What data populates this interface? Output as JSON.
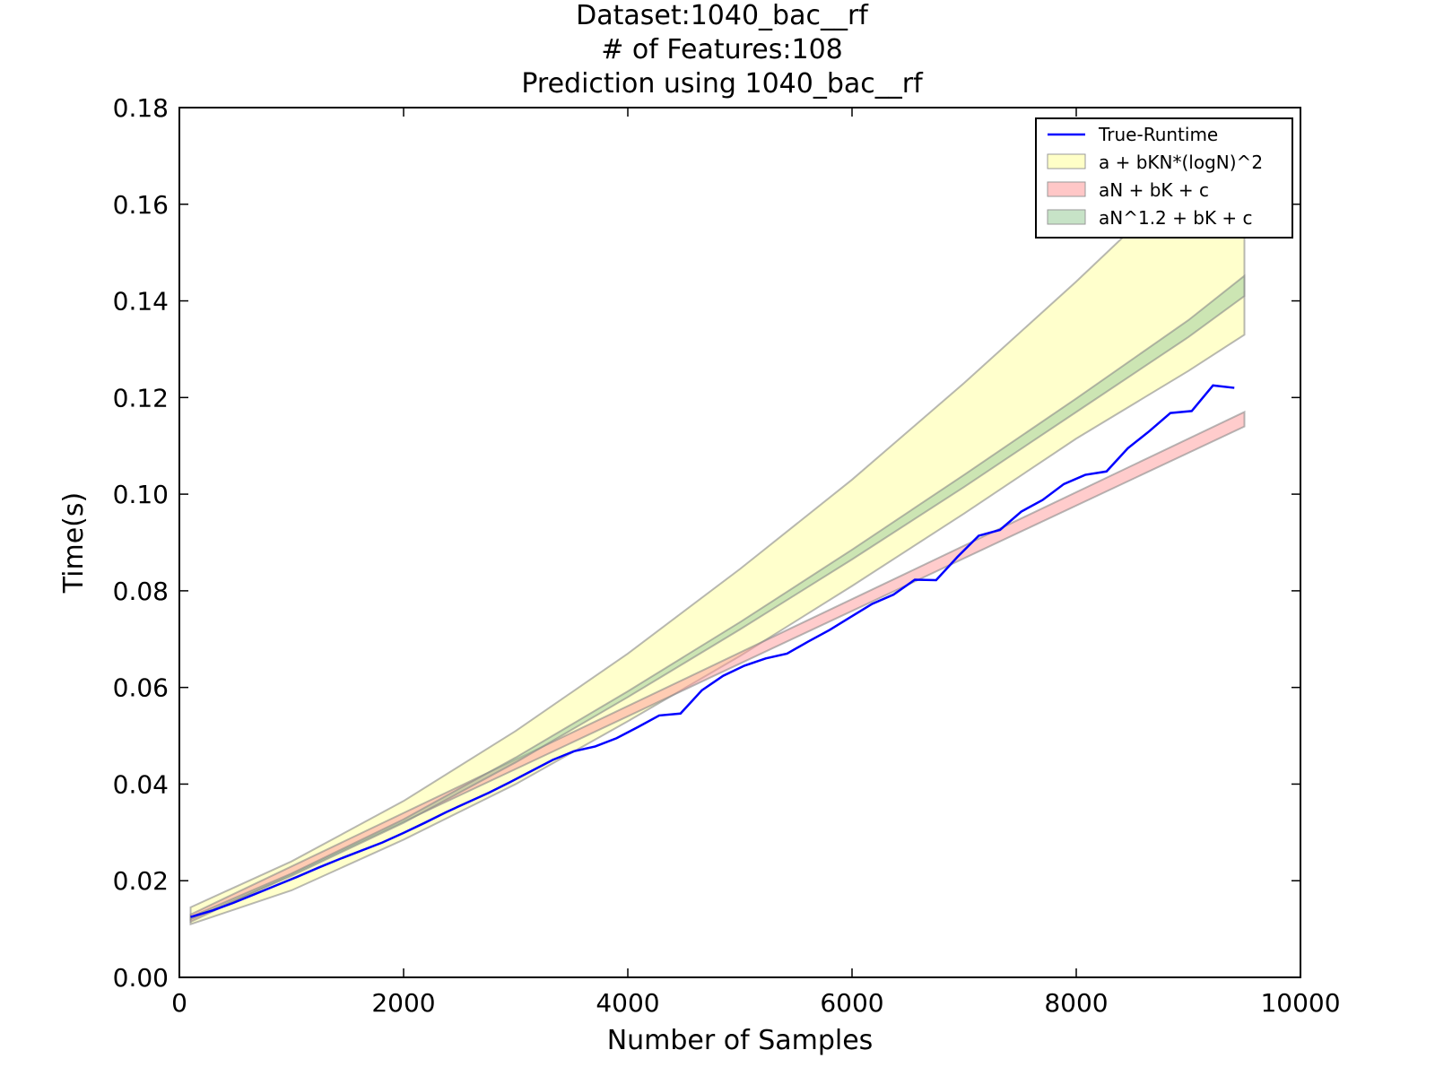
{
  "chart_data": {
    "type": "line",
    "title_lines": [
      "Dataset:1040_bac__rf",
      "# of Features:108",
      "Prediction using 1040_bac__rf"
    ],
    "xlabel": "Number of Samples",
    "ylabel": "Time(s)",
    "xlim": [
      0,
      10000
    ],
    "ylim": [
      0,
      0.18
    ],
    "x_ticks": [
      0,
      2000,
      4000,
      6000,
      8000,
      10000
    ],
    "x_tick_labels": [
      "0",
      "2000",
      "4000",
      "6000",
      "8000",
      "10000"
    ],
    "y_ticks": [
      0,
      0.02,
      0.04,
      0.06,
      0.08,
      0.1,
      0.12,
      0.14,
      0.16,
      0.18
    ],
    "y_tick_labels": [
      "0.00",
      "0.02",
      "0.04",
      "0.06",
      "0.08",
      "0.10",
      "0.12",
      "0.14",
      "0.16",
      "0.18"
    ],
    "grid": false,
    "legend_position": "top-right",
    "series": [
      {
        "name": "True-Runtime",
        "kind": "line",
        "color": "#0000ff",
        "x": [
          100,
          290,
          480,
          670,
          860,
          1050,
          1240,
          1430,
          1620,
          1810,
          2000,
          2190,
          2380,
          2570,
          2760,
          2950,
          3140,
          3330,
          3520,
          3710,
          3900,
          4090,
          4280,
          4470,
          4660,
          4850,
          5040,
          5230,
          5420,
          5610,
          5800,
          5990,
          6180,
          6370,
          6560,
          6750,
          6940,
          7130,
          7320,
          7510,
          7700,
          7890,
          8080,
          8270,
          8460,
          8650,
          8840,
          9030,
          9220,
          9410
        ],
        "values": [
          0.0125,
          0.0138,
          0.0154,
          0.0172,
          0.019,
          0.0208,
          0.0227,
          0.0245,
          0.0262,
          0.0279,
          0.0299,
          0.032,
          0.0342,
          0.0362,
          0.0382,
          0.0404,
          0.0427,
          0.045,
          0.0468,
          0.0478,
          0.0495,
          0.0518,
          0.0542,
          0.0546,
          0.0594,
          0.0624,
          0.0645,
          0.066,
          0.067,
          0.0695,
          0.0719,
          0.0746,
          0.0773,
          0.0792,
          0.0823,
          0.0822,
          0.087,
          0.0914,
          0.0926,
          0.0964,
          0.0988,
          0.1021,
          0.104,
          0.1047,
          0.1095,
          0.113,
          0.1168,
          0.1172,
          0.1225,
          0.122
        ]
      },
      {
        "name": "a + bKN*(logN)^2",
        "kind": "band",
        "color": "#ffff99",
        "x": [
          100,
          1000,
          2000,
          3000,
          4000,
          5000,
          6000,
          7000,
          8000,
          9000,
          9500
        ],
        "lower": [
          0.011,
          0.018,
          0.0285,
          0.04,
          0.053,
          0.0665,
          0.081,
          0.096,
          0.1115,
          0.1255,
          0.133
        ],
        "upper": [
          0.0145,
          0.024,
          0.0365,
          0.051,
          0.067,
          0.0845,
          0.103,
          0.123,
          0.144,
          0.166,
          0.1775
        ]
      },
      {
        "name": "aN + bK + c",
        "kind": "band",
        "color": "#ff9999",
        "x": [
          100,
          9500
        ],
        "lower": [
          0.0115,
          0.114
        ],
        "upper": [
          0.013,
          0.117
        ]
      },
      {
        "name": "aN^1.2 + bK + c",
        "kind": "band",
        "color": "#99cc99",
        "x": [
          100,
          1000,
          2000,
          3000,
          4000,
          5000,
          6000,
          7000,
          8000,
          9000,
          9500
        ],
        "lower": [
          0.012,
          0.021,
          0.032,
          0.0445,
          0.058,
          0.072,
          0.0865,
          0.1015,
          0.117,
          0.1325,
          0.141
        ],
        "upper": [
          0.0125,
          0.0215,
          0.0327,
          0.0455,
          0.0592,
          0.0735,
          0.0885,
          0.104,
          0.1198,
          0.136,
          0.1452
        ]
      }
    ]
  }
}
